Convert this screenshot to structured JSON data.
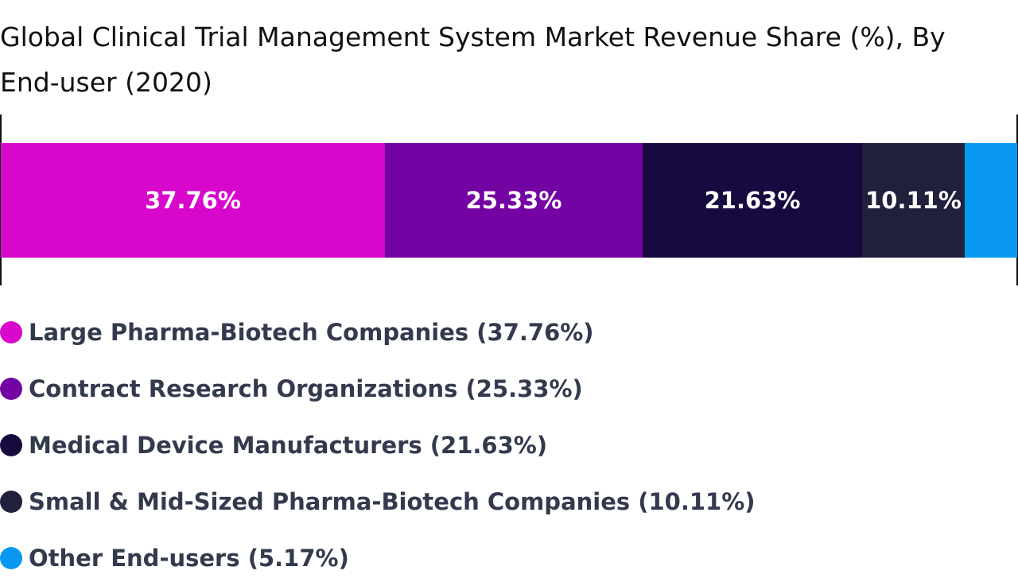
{
  "chart_data": {
    "type": "bar",
    "orientation": "horizontal-stacked-100",
    "title": "Global Clinical Trial Management System Market Revenue Share (%), By End-user (2020)",
    "unit": "%",
    "grid": false,
    "legend_position": "bottom",
    "series": [
      {
        "name": "Large Pharma-Biotech Companies",
        "value": 37.76,
        "value_label": "37.76%",
        "legend_label": "Large Pharma-Biotech Companies (37.76%)",
        "color": "#d807cc",
        "show_label": true
      },
      {
        "name": "Contract Research Organizations",
        "value": 25.33,
        "value_label": "25.33%",
        "legend_label": "Contract Research Organizations (25.33%)",
        "color": "#7403a3",
        "show_label": true
      },
      {
        "name": "Medical Device Manufacturers",
        "value": 21.63,
        "value_label": "21.63%",
        "legend_label": "Medical Device Manufacturers (21.63%)",
        "color": "#170a3f",
        "show_label": true
      },
      {
        "name": "Small & Mid-Sized Pharma-Biotech Companies",
        "value": 10.11,
        "value_label": "10.11%",
        "legend_label": "Small & Mid-Sized Pharma-Biotech Companies (10.11%)",
        "color": "#201f3c",
        "show_label": true
      },
      {
        "name": "Other End-users",
        "value": 5.17,
        "value_label": "",
        "legend_label": "Other End-users (5.17%)",
        "color": "#0898ef",
        "show_label": false
      }
    ]
  }
}
